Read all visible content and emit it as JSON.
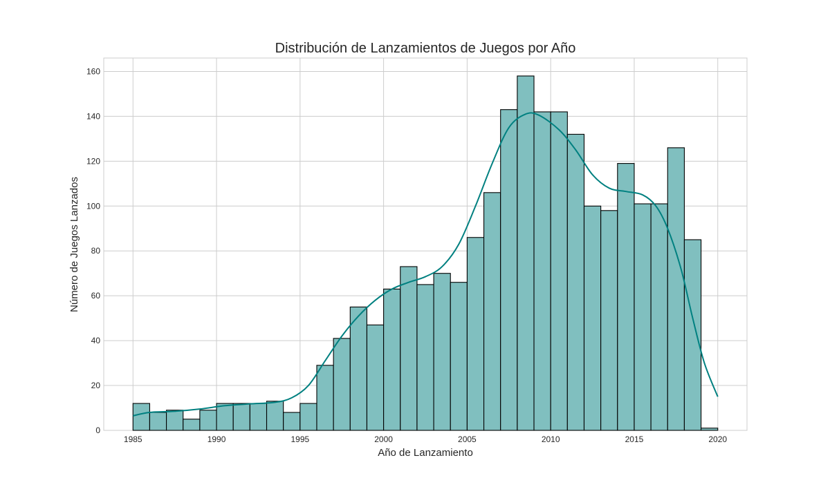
{
  "chart_data": {
    "type": "bar",
    "title": "Distribución de Lanzamientos de Juegos por Año",
    "xlabel": "Año de Lanzamiento",
    "ylabel": "Número de Juegos Lanzados",
    "xlim": [
      1983.25,
      2021.75
    ],
    "ylim": [
      0,
      166
    ],
    "x_ticks": [
      1985,
      1990,
      1995,
      2000,
      2005,
      2010,
      2015,
      2020
    ],
    "y_ticks": [
      0,
      20,
      40,
      60,
      80,
      100,
      120,
      140,
      160
    ],
    "grid": true,
    "bar_color": "#80bfbf",
    "bar_edge_color": "#000000",
    "kde_color": "#008080",
    "bins": [
      {
        "x0": 1985,
        "x1": 1986,
        "value": 12
      },
      {
        "x0": 1986,
        "x1": 1987,
        "value": 8
      },
      {
        "x0": 1987,
        "x1": 1988,
        "value": 9
      },
      {
        "x0": 1988,
        "x1": 1989,
        "value": 5
      },
      {
        "x0": 1989,
        "x1": 1990,
        "value": 9
      },
      {
        "x0": 1990,
        "x1": 1991,
        "value": 12
      },
      {
        "x0": 1991,
        "x1": 1992,
        "value": 12
      },
      {
        "x0": 1992,
        "x1": 1993,
        "value": 12
      },
      {
        "x0": 1993,
        "x1": 1994,
        "value": 13
      },
      {
        "x0": 1994,
        "x1": 1995,
        "value": 8
      },
      {
        "x0": 1995,
        "x1": 1996,
        "value": 12
      },
      {
        "x0": 1996,
        "x1": 1997,
        "value": 29
      },
      {
        "x0": 1997,
        "x1": 1998,
        "value": 41
      },
      {
        "x0": 1998,
        "x1": 1999,
        "value": 55
      },
      {
        "x0": 1999,
        "x1": 2000,
        "value": 47
      },
      {
        "x0": 2000,
        "x1": 2001,
        "value": 63
      },
      {
        "x0": 2001,
        "x1": 2002,
        "value": 73
      },
      {
        "x0": 2002,
        "x1": 2003,
        "value": 65
      },
      {
        "x0": 2003,
        "x1": 2004,
        "value": 70
      },
      {
        "x0": 2004,
        "x1": 2005,
        "value": 66
      },
      {
        "x0": 2005,
        "x1": 2006,
        "value": 86
      },
      {
        "x0": 2006,
        "x1": 2007,
        "value": 106
      },
      {
        "x0": 2007,
        "x1": 2008,
        "value": 143
      },
      {
        "x0": 2008,
        "x1": 2009,
        "value": 158
      },
      {
        "x0": 2009,
        "x1": 2010,
        "value": 142
      },
      {
        "x0": 2010,
        "x1": 2011,
        "value": 142
      },
      {
        "x0": 2011,
        "x1": 2012,
        "value": 132
      },
      {
        "x0": 2012,
        "x1": 2013,
        "value": 100
      },
      {
        "x0": 2013,
        "x1": 2014,
        "value": 98
      },
      {
        "x0": 2014,
        "x1": 2015,
        "value": 119
      },
      {
        "x0": 2015,
        "x1": 2016,
        "value": 101
      },
      {
        "x0": 2016,
        "x1": 2017,
        "value": 101
      },
      {
        "x0": 2017,
        "x1": 2018,
        "value": 126
      },
      {
        "x0": 2018,
        "x1": 2019,
        "value": 85
      },
      {
        "x0": 2019,
        "x1": 2020,
        "value": 1
      }
    ],
    "kde_curve": [
      {
        "x": 1985,
        "y": 6.5
      },
      {
        "x": 1986,
        "y": 8
      },
      {
        "x": 1987.5,
        "y": 8.5
      },
      {
        "x": 1989,
        "y": 9.5
      },
      {
        "x": 1990.5,
        "y": 11
      },
      {
        "x": 1992,
        "y": 11.8
      },
      {
        "x": 1993.5,
        "y": 12.5
      },
      {
        "x": 1994.5,
        "y": 14.5
      },
      {
        "x": 1995.5,
        "y": 20
      },
      {
        "x": 1996.5,
        "y": 31
      },
      {
        "x": 1997.5,
        "y": 42
      },
      {
        "x": 1998.5,
        "y": 51
      },
      {
        "x": 1999.5,
        "y": 58
      },
      {
        "x": 2000.5,
        "y": 63
      },
      {
        "x": 2001.5,
        "y": 66
      },
      {
        "x": 2002.5,
        "y": 68.5
      },
      {
        "x": 2003.5,
        "y": 73
      },
      {
        "x": 2004.5,
        "y": 83
      },
      {
        "x": 2005.5,
        "y": 100
      },
      {
        "x": 2006.5,
        "y": 119
      },
      {
        "x": 2007.5,
        "y": 135
      },
      {
        "x": 2008.5,
        "y": 141
      },
      {
        "x": 2009.3,
        "y": 140.5
      },
      {
        "x": 2010.5,
        "y": 134
      },
      {
        "x": 2011.5,
        "y": 125
      },
      {
        "x": 2012.5,
        "y": 114
      },
      {
        "x": 2013.5,
        "y": 108
      },
      {
        "x": 2014.5,
        "y": 106.5
      },
      {
        "x": 2015.5,
        "y": 105
      },
      {
        "x": 2016.3,
        "y": 100
      },
      {
        "x": 2017,
        "y": 90
      },
      {
        "x": 2017.8,
        "y": 72
      },
      {
        "x": 2018.5,
        "y": 50
      },
      {
        "x": 2019.2,
        "y": 30
      },
      {
        "x": 2020,
        "y": 15
      }
    ]
  }
}
